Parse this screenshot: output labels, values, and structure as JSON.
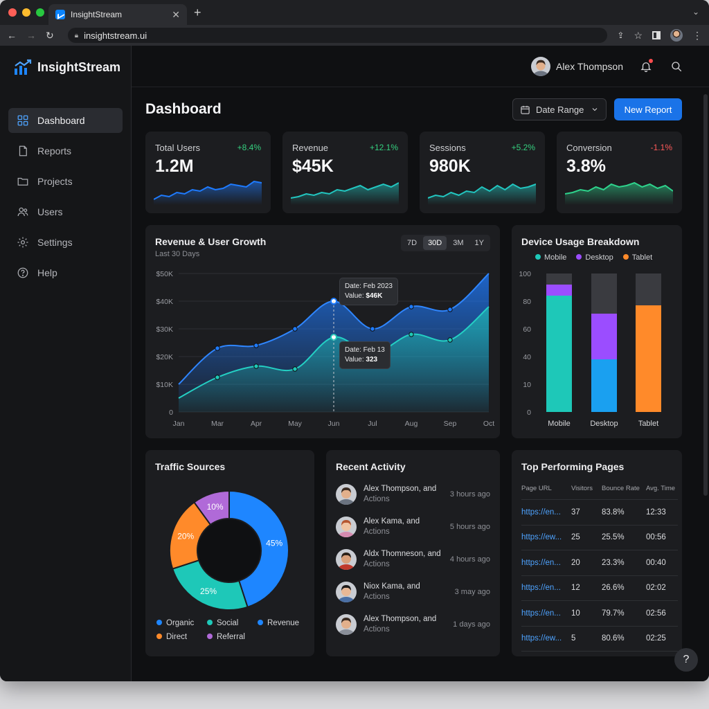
{
  "browser": {
    "tab_title": "InsightStream",
    "url": "insightstream.ui"
  },
  "app": {
    "brand": "InsightStream",
    "accent": "#1a73e8"
  },
  "sidebar": {
    "items": [
      {
        "label": "Dashboard",
        "icon": "grid-icon",
        "active": true
      },
      {
        "label": "Reports",
        "icon": "document-icon"
      },
      {
        "label": "Projects",
        "icon": "folder-icon"
      },
      {
        "label": "Users",
        "icon": "users-icon"
      },
      {
        "label": "Settings",
        "icon": "gear-icon"
      },
      {
        "label": "Help",
        "icon": "help-circle-icon"
      }
    ]
  },
  "header": {
    "user_name": "Alex Thompson"
  },
  "page": {
    "title": "Dashboard",
    "date_range_label": "Date Range",
    "new_report_label": "New Report"
  },
  "kpis": [
    {
      "label": "Total Users",
      "value": "1.2M",
      "change": "+8.4%",
      "trend": "up",
      "color": "#1e7bff"
    },
    {
      "label": "Revenue",
      "value": "$45K",
      "change": "+12.1%",
      "trend": "up",
      "color": "#22c6c0"
    },
    {
      "label": "Sessions",
      "value": "980K",
      "change": "+5.2%",
      "trend": "up",
      "color": "#22c6c0"
    },
    {
      "label": "Conversion",
      "value": "3.8%",
      "change": "-1.1%",
      "trend": "down",
      "color": "#2ed38c"
    }
  ],
  "growth": {
    "title": "Revenue & User Growth",
    "subtitle": "Last 30 Days",
    "ranges": [
      "7D",
      "30D",
      "3M",
      "1Y"
    ],
    "selected_range": "30D",
    "tooltip_top": {
      "date": "Date: Feb 2023",
      "value_label": "Value: ",
      "value": "$46K"
    },
    "tooltip_bottom": {
      "date": "Date: Feb 13",
      "value_label": "Value: ",
      "value": "323"
    }
  },
  "device": {
    "title": "Device Usage Breakdown",
    "legend": [
      {
        "name": "Mobile",
        "color": "#1ec8b8"
      },
      {
        "name": "Desktop",
        "color": "#9b4dff"
      },
      {
        "name": "Tablet",
        "color": "#ff8a2a"
      }
    ]
  },
  "traffic": {
    "title": "Traffic Sources",
    "legend": [
      {
        "name": "Organic",
        "color": "#1e86ff"
      },
      {
        "name": "Social",
        "color": "#1ec8b8"
      },
      {
        "name": "Revenue",
        "color": "#1e86ff"
      },
      {
        "name": "Direct",
        "color": "#ff8a2a"
      },
      {
        "name": "Referral",
        "color": "#b06ad8"
      }
    ]
  },
  "activity": {
    "title": "Recent Activity",
    "items": [
      {
        "name": "Alex Thompson, and",
        "sub": "Actions",
        "time": "3 hours ago",
        "skin": "#e2b08c",
        "hair": "#3a2a20",
        "shirt": "#6b7380"
      },
      {
        "name": "Alex Kama, and",
        "sub": "Actions",
        "time": "5 hours ago",
        "skin": "#f0c4a2",
        "hair": "#b5562f",
        "shirt": "#d58bb0"
      },
      {
        "name": "Aldx Thomneson, and",
        "sub": "Actions",
        "time": "4 hours ago",
        "skin": "#d9a07a",
        "hair": "#2b2018",
        "shirt": "#c0392b"
      },
      {
        "name": "Niox Kama, and",
        "sub": "Actions",
        "time": "3 may ago",
        "skin": "#e8b896",
        "hair": "#1c1a1a",
        "shirt": "#4a6fa5"
      },
      {
        "name": "Alex Thompson, and",
        "sub": "Actions",
        "time": "1 days ago",
        "skin": "#e2b08c",
        "hair": "#3a2a20",
        "shirt": "#8a8f99"
      }
    ]
  },
  "top_pages": {
    "title": "Top Performing Pages",
    "columns": [
      "Page URL",
      "Visitors",
      "Bounce Rate",
      "Avg. Time"
    ],
    "rows": [
      [
        "https://en...",
        "37",
        "83.8%",
        "12:33"
      ],
      [
        "https://ew...",
        "25",
        "25.5%",
        "00:56"
      ],
      [
        "https://en...",
        "20",
        "23.3%",
        "00:40"
      ],
      [
        "https://en...",
        "12",
        "26.6%",
        "02:02"
      ],
      [
        "https://en...",
        "10",
        "79.7%",
        "02:56"
      ],
      [
        "https://ew...",
        "5",
        "80.6%",
        "02:25"
      ]
    ]
  },
  "help_label": "?",
  "chart_data": [
    {
      "type": "area",
      "title": "Revenue & User Growth",
      "subtitle": "Last 30 Days",
      "x": [
        "Jan",
        "Mar",
        "Apr",
        "May",
        "Jun",
        "Jul",
        "Aug",
        "Sep",
        "Oct"
      ],
      "y_ticks": [
        "0",
        "$10K",
        "$20K",
        "$30K",
        "$40K",
        "$50K"
      ],
      "ylim": [
        0,
        50
      ],
      "series": [
        {
          "values": [
            10,
            23,
            24,
            30,
            40,
            30,
            38,
            37,
            50
          ],
          "color": "#1e7bff"
        },
        {
          "values": [
            5,
            12.5,
            16.5,
            15.5,
            27,
            21,
            28,
            26,
            38
          ],
          "color": "#1ec8b8"
        }
      ],
      "grid": true
    },
    {
      "type": "bar",
      "title": "Device Usage Breakdown",
      "categories": [
        "Mobile",
        "Desktop",
        "Tablet"
      ],
      "y_ticks": [
        0,
        10,
        40,
        60,
        80,
        100
      ],
      "ylim": [
        0,
        100
      ],
      "series": [
        {
          "name": "Mobile",
          "values": [
            84,
            0,
            0
          ]
        },
        {
          "name": "Desktop",
          "values": [
            8,
            33,
            0
          ]
        },
        {
          "name": "Tablet",
          "values": [
            0,
            0,
            77
          ]
        }
      ],
      "segments": [
        {
          "bottom": 0,
          "top": 84,
          "color": "#1ec8b8"
        },
        {
          "bottom": 84,
          "top": 92,
          "color": "#9b4dff"
        },
        {
          "bottom": 0,
          "top": 38,
          "color": "#1aa0f0"
        },
        {
          "bottom": 38,
          "top": 71,
          "color": "#9b4dff"
        },
        {
          "bottom": 0,
          "top": 77,
          "color": "#ff8a2a"
        }
      ],
      "legend": "top"
    },
    {
      "type": "pie",
      "title": "Traffic Sources",
      "slices": [
        {
          "label": "45%",
          "value": 45,
          "color": "#1e86ff"
        },
        {
          "label": "25%",
          "value": 25,
          "color": "#1ec8b8"
        },
        {
          "label": "20%",
          "value": 20,
          "color": "#ff8a2a"
        },
        {
          "label": "10%",
          "value": 10,
          "color": "#b06ad8"
        }
      ]
    }
  ]
}
